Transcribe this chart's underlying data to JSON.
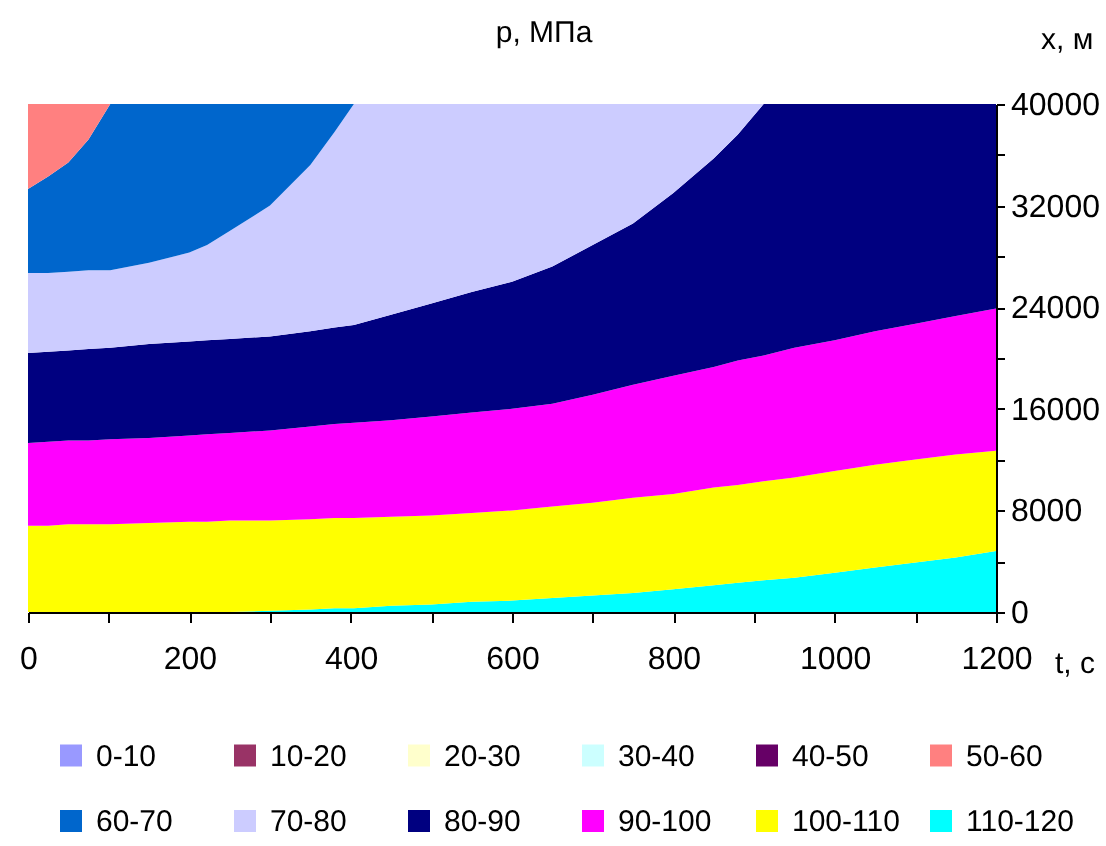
{
  "chart_data": {
    "type": "area",
    "stacked": true,
    "title": "p, МПа",
    "xlabel": "t, с",
    "ylabel": "x, м",
    "legend": "bottom",
    "x": [
      0,
      25,
      50,
      75,
      102,
      150,
      200,
      222,
      250,
      300,
      350,
      380,
      404,
      450,
      500,
      550,
      600,
      650,
      700,
      750,
      800,
      850,
      880,
      912,
      950,
      1000,
      1050,
      1100,
      1150,
      1200
    ],
    "xlim": [
      0,
      1200
    ],
    "xticks": [
      0,
      {
        "value": 100,
        "label": null
      },
      200,
      {
        "value": 300,
        "label": null
      },
      400,
      {
        "value": 500,
        "label": null
      },
      600,
      {
        "value": 700,
        "label": null
      },
      800,
      {
        "value": 900,
        "label": null
      },
      1000,
      {
        "value": 1100,
        "label": null
      },
      1200
    ],
    "ylim": [
      0,
      40000
    ],
    "yticks": [
      0,
      {
        "value": 4000,
        "label": null
      },
      8000,
      {
        "value": 12000,
        "label": null
      },
      16000,
      {
        "value": 20000,
        "label": null
      },
      24000,
      {
        "value": 28000,
        "label": null
      },
      32000,
      {
        "value": 36000,
        "label": null
      },
      40000
    ],
    "series": [
      {
        "name": "110-120",
        "color": "#00ffff",
        "values": [
          0,
          0,
          0,
          0,
          0,
          0,
          0,
          0,
          0,
          100,
          200,
          300,
          300,
          500,
          600,
          800,
          900,
          1100,
          1300,
          1500,
          1800,
          2100,
          2300,
          2500,
          2700,
          3100,
          3500,
          3900,
          4300,
          4800
        ]
      },
      {
        "name": "100-110",
        "color": "#ffff00",
        "values": [
          6800,
          6800,
          6900,
          6900,
          6900,
          7000,
          7100,
          7100,
          7200,
          7100,
          7100,
          7100,
          7100,
          7000,
          7000,
          7000,
          7100,
          7200,
          7300,
          7500,
          7500,
          7700,
          7700,
          7800,
          7900,
          8000,
          8100,
          8100,
          8100,
          7900
        ]
      },
      {
        "name": "90-100",
        "color": "#ff00ff",
        "values": [
          6500,
          6600,
          6600,
          6600,
          6700,
          6700,
          6800,
          6900,
          6900,
          7100,
          7300,
          7400,
          7500,
          7600,
          7800,
          7900,
          8000,
          8100,
          8500,
          8900,
          9300,
          9500,
          9800,
          9900,
          10200,
          10300,
          10500,
          10700,
          10900,
          11200
        ]
      },
      {
        "name": "80-90",
        "color": "#000080",
        "values": [
          7100,
          7100,
          7100,
          7200,
          7200,
          7400,
          7400,
          7400,
          7400,
          7400,
          7500,
          7600,
          7700,
          8300,
          8900,
          9500,
          10000,
          10800,
          11800,
          12700,
          14400,
          16400,
          17800,
          19800,
          19200,
          18600,
          17900,
          17300,
          16700,
          16100
        ]
      },
      {
        "name": "70-80",
        "color": "#ccccff",
        "values": [
          6300,
          6200,
          6200,
          6200,
          6100,
          6400,
          7000,
          7500,
          8500,
          10300,
          13100,
          15400,
          17400,
          16600,
          15700,
          14800,
          14000,
          12800,
          11100,
          9400,
          7000,
          4300,
          2400,
          0,
          0,
          0,
          0,
          0,
          0,
          0
        ]
      },
      {
        "name": "60-70",
        "color": "#0066cc",
        "values": [
          6600,
          7600,
          8600,
          10300,
          13100,
          12500,
          11700,
          11100,
          10000,
          8000,
          4800,
          2200,
          0,
          0,
          0,
          0,
          0,
          0,
          0,
          0,
          0,
          0,
          0,
          0,
          0,
          0,
          0,
          0,
          0,
          0
        ]
      },
      {
        "name": "50-60",
        "color": "#ff8080",
        "values": [
          6700,
          5700,
          4600,
          2800,
          0,
          0,
          0,
          0,
          0,
          0,
          0,
          0,
          0,
          0,
          0,
          0,
          0,
          0,
          0,
          0,
          0,
          0,
          0,
          0,
          0,
          0,
          0,
          0,
          0,
          0
        ]
      },
      {
        "name": "40-50",
        "color": "#660066",
        "values": [
          null,
          null,
          null,
          null,
          null,
          null,
          null,
          null,
          null,
          null,
          null,
          null,
          null,
          null,
          null,
          null,
          null,
          null,
          null,
          null,
          null,
          null,
          null,
          null,
          null,
          null,
          null,
          null,
          null,
          null
        ]
      },
      {
        "name": "30-40",
        "color": "#ccffff",
        "values": [
          null,
          null,
          null,
          null,
          null,
          null,
          null,
          null,
          null,
          null,
          null,
          null,
          null,
          null,
          null,
          null,
          null,
          null,
          null,
          null,
          null,
          null,
          null,
          null,
          null,
          null,
          null,
          null,
          null,
          null
        ]
      },
      {
        "name": "20-30",
        "color": "#ffffcc",
        "values": [
          null,
          null,
          null,
          null,
          null,
          null,
          null,
          null,
          null,
          null,
          null,
          null,
          null,
          null,
          null,
          null,
          null,
          null,
          null,
          null,
          null,
          null,
          null,
          null,
          null,
          null,
          null,
          null,
          null,
          null
        ]
      },
      {
        "name": "10-20",
        "color": "#993366",
        "values": [
          null,
          null,
          null,
          null,
          null,
          null,
          null,
          null,
          null,
          null,
          null,
          null,
          null,
          null,
          null,
          null,
          null,
          null,
          null,
          null,
          null,
          null,
          null,
          null,
          null,
          null,
          null,
          null,
          null,
          null
        ]
      },
      {
        "name": "0-10",
        "color": "#9999ff",
        "values": [
          null,
          null,
          null,
          null,
          null,
          null,
          null,
          null,
          null,
          null,
          null,
          null,
          null,
          null,
          null,
          null,
          null,
          null,
          null,
          null,
          null,
          null,
          null,
          null,
          null,
          null,
          null,
          null,
          null,
          null
        ]
      }
    ]
  }
}
